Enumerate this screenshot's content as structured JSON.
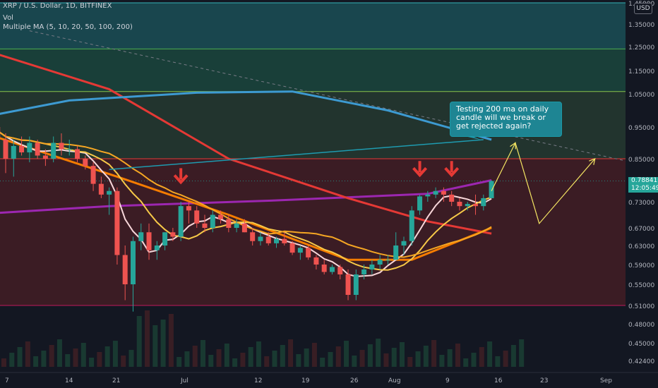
{
  "header": {
    "symbol_line": "XRP / U.S. Dollar, 1D, BITFINEX",
    "vol_label": "Vol",
    "ma_label": "Multiple MA (5, 10, 20, 50, 100, 200)",
    "currency": "USD"
  },
  "last_price": {
    "value": "0.78841",
    "countdown": "12:05:49"
  },
  "annotation": {
    "text": "Testing 200 ma on daily candle will we break or get rejected again?"
  },
  "colors": {
    "background": "#131722",
    "up_candle": "#26a69a",
    "down_candle": "#ef5350",
    "ma5": "#f8d7da",
    "ma10": "#f7c948",
    "ma20": "#f5a623",
    "ma50": "#f57c00",
    "ma100": "#e53935",
    "ma200": "#9c27b0",
    "extra_ma": "#3d9ad1",
    "teal_trendline": "#1e9bb0",
    "projection_line": "#f5e663",
    "signal_arrow": "#e53935"
  },
  "chart_data": {
    "type": "candlestick",
    "title": "XRP / U.S. Dollar, 1D, BITFINEX",
    "x_ticks": [
      "7",
      "14",
      "21",
      "Jul",
      "12",
      "19",
      "26",
      "Aug",
      "9",
      "16",
      "23",
      "Sep"
    ],
    "y_ticks": [
      1.45,
      1.35,
      1.25,
      1.15,
      1.05,
      0.95,
      0.85,
      0.73,
      0.67,
      0.63,
      0.59,
      0.55,
      0.51,
      0.48,
      0.45,
      0.424
    ],
    "y_ticks_display": [
      "1.45000",
      "1.35000",
      "1.25000",
      "1.15000",
      "1.05000",
      "0.95000",
      "0.85000",
      "0.73000",
      "0.67000",
      "0.63000",
      "0.59000",
      "0.55000",
      "0.51000",
      "0.48000",
      "0.45000",
      "0.42400"
    ],
    "y_scale": "log",
    "y_range": [
      0.4,
      1.46
    ],
    "x_domain": "2021-06-02 to 2021-09-05 (daily)",
    "ohlc": [
      [
        "2021-06-03",
        1.02,
        1.06,
        0.96,
        0.96
      ],
      [
        "2021-06-04",
        0.96,
        1.0,
        0.91,
        0.93
      ],
      [
        "2021-06-05",
        0.93,
        0.98,
        0.89,
        0.95
      ],
      [
        "2021-06-06",
        0.95,
        0.99,
        0.9,
        0.91
      ],
      [
        "2021-06-07",
        0.91,
        0.93,
        0.81,
        0.85
      ],
      [
        "2021-06-08",
        0.85,
        0.91,
        0.8,
        0.89
      ],
      [
        "2021-06-09",
        0.89,
        0.92,
        0.86,
        0.87
      ],
      [
        "2021-06-10",
        0.87,
        0.92,
        0.84,
        0.9
      ],
      [
        "2021-06-11",
        0.9,
        0.91,
        0.85,
        0.86
      ],
      [
        "2021-06-12",
        0.86,
        0.88,
        0.83,
        0.85
      ],
      [
        "2021-06-13",
        0.85,
        0.92,
        0.84,
        0.9
      ],
      [
        "2021-06-14",
        0.9,
        0.93,
        0.86,
        0.88
      ],
      [
        "2021-06-15",
        0.88,
        0.91,
        0.86,
        0.88
      ],
      [
        "2021-06-16",
        0.88,
        0.89,
        0.84,
        0.85
      ],
      [
        "2021-06-17",
        0.85,
        0.86,
        0.82,
        0.83
      ],
      [
        "2021-06-18",
        0.83,
        0.84,
        0.76,
        0.78
      ],
      [
        "2021-06-19",
        0.78,
        0.8,
        0.74,
        0.75
      ],
      [
        "2021-06-20",
        0.75,
        0.77,
        0.7,
        0.76
      ],
      [
        "2021-06-21",
        0.76,
        0.77,
        0.59,
        0.61
      ],
      [
        "2021-06-22",
        0.61,
        0.63,
        0.52,
        0.55
      ],
      [
        "2021-06-23",
        0.55,
        0.65,
        0.5,
        0.64
      ],
      [
        "2021-06-24",
        0.64,
        0.68,
        0.62,
        0.66
      ],
      [
        "2021-06-25",
        0.66,
        0.68,
        0.6,
        0.62
      ],
      [
        "2021-06-26",
        0.62,
        0.64,
        0.6,
        0.63
      ],
      [
        "2021-06-27",
        0.63,
        0.66,
        0.62,
        0.66
      ],
      [
        "2021-06-28",
        0.66,
        0.67,
        0.64,
        0.65
      ],
      [
        "2021-06-29",
        0.65,
        0.73,
        0.64,
        0.72
      ],
      [
        "2021-06-30",
        0.72,
        0.73,
        0.68,
        0.71
      ],
      [
        "2021-07-01",
        0.71,
        0.72,
        0.67,
        0.68
      ],
      [
        "2021-07-02",
        0.68,
        0.7,
        0.66,
        0.67
      ],
      [
        "2021-07-03",
        0.67,
        0.71,
        0.66,
        0.7
      ],
      [
        "2021-07-04",
        0.7,
        0.71,
        0.68,
        0.69
      ],
      [
        "2021-07-05",
        0.69,
        0.7,
        0.66,
        0.67
      ],
      [
        "2021-07-06",
        0.67,
        0.69,
        0.66,
        0.68
      ],
      [
        "2021-07-07",
        0.68,
        0.69,
        0.66,
        0.66
      ],
      [
        "2021-07-08",
        0.66,
        0.67,
        0.63,
        0.64
      ],
      [
        "2021-07-09",
        0.64,
        0.66,
        0.63,
        0.65
      ],
      [
        "2021-07-10",
        0.65,
        0.66,
        0.63,
        0.635
      ],
      [
        "2021-07-11",
        0.635,
        0.65,
        0.625,
        0.645
      ],
      [
        "2021-07-12",
        0.645,
        0.66,
        0.63,
        0.635
      ],
      [
        "2021-07-13",
        0.635,
        0.64,
        0.61,
        0.615
      ],
      [
        "2021-07-14",
        0.615,
        0.63,
        0.6,
        0.625
      ],
      [
        "2021-07-15",
        0.625,
        0.63,
        0.6,
        0.605
      ],
      [
        "2021-07-16",
        0.605,
        0.61,
        0.58,
        0.59
      ],
      [
        "2021-07-17",
        0.59,
        0.6,
        0.57,
        0.575
      ],
      [
        "2021-07-18",
        0.575,
        0.59,
        0.57,
        0.585
      ],
      [
        "2021-07-19",
        0.585,
        0.59,
        0.56,
        0.57
      ],
      [
        "2021-07-20",
        0.57,
        0.58,
        0.52,
        0.53
      ],
      [
        "2021-07-21",
        0.53,
        0.58,
        0.52,
        0.57
      ],
      [
        "2021-07-22",
        0.57,
        0.59,
        0.56,
        0.58
      ],
      [
        "2021-07-23",
        0.58,
        0.6,
        0.57,
        0.59
      ],
      [
        "2021-07-24",
        0.59,
        0.61,
        0.58,
        0.6
      ],
      [
        "2021-07-25",
        0.6,
        0.61,
        0.59,
        0.6
      ],
      [
        "2021-07-26",
        0.6,
        0.66,
        0.6,
        0.63
      ],
      [
        "2021-07-27",
        0.63,
        0.65,
        0.61,
        0.64
      ],
      [
        "2021-07-28",
        0.64,
        0.72,
        0.63,
        0.71
      ],
      [
        "2021-07-29",
        0.71,
        0.75,
        0.7,
        0.745
      ],
      [
        "2021-07-30",
        0.745,
        0.76,
        0.73,
        0.75
      ],
      [
        "2021-07-31",
        0.75,
        0.77,
        0.74,
        0.76
      ],
      [
        "2021-08-01",
        0.76,
        0.77,
        0.73,
        0.75
      ],
      [
        "2021-08-02",
        0.75,
        0.76,
        0.72,
        0.73
      ],
      [
        "2021-08-03",
        0.73,
        0.74,
        0.71,
        0.72
      ],
      [
        "2021-08-04",
        0.72,
        0.73,
        0.71,
        0.725
      ],
      [
        "2021-08-05",
        0.725,
        0.75,
        0.7,
        0.72
      ],
      [
        "2021-08-06",
        0.72,
        0.75,
        0.71,
        0.74
      ],
      [
        "2021-08-07",
        0.74,
        0.79,
        0.74,
        0.788
      ]
    ],
    "moving_averages": [
      {
        "name": "MA 200",
        "points": [
          [
            "2021-06-02",
            0.7
          ],
          [
            "2021-06-20",
            0.72
          ],
          [
            "2021-07-10",
            0.733
          ],
          [
            "2021-07-30",
            0.752
          ],
          [
            "2021-08-07",
            0.79
          ]
        ]
      },
      {
        "name": "MA 100",
        "points": [
          [
            "2021-06-02",
            1.26
          ],
          [
            "2021-06-20",
            1.07
          ],
          [
            "2021-07-05",
            0.85
          ],
          [
            "2021-07-20",
            0.74
          ],
          [
            "2021-07-30",
            0.685
          ],
          [
            "2021-08-07",
            0.657
          ]
        ]
      },
      {
        "name": "MA 50",
        "points": [
          [
            "2021-06-02",
            0.95
          ],
          [
            "2021-06-21",
            0.8
          ],
          [
            "2021-07-05",
            0.7
          ],
          [
            "2021-07-20",
            0.6
          ],
          [
            "2021-07-28",
            0.6
          ],
          [
            "2021-08-07",
            0.67
          ]
        ]
      },
      {
        "name": "MA (blue)",
        "points": [
          [
            "2021-06-02",
            0.97
          ],
          [
            "2021-06-15",
            1.03
          ],
          [
            "2021-07-01",
            1.055
          ],
          [
            "2021-07-13",
            1.06
          ],
          [
            "2021-07-25",
            1.0
          ],
          [
            "2021-08-07",
            0.91
          ]
        ]
      }
    ],
    "horizontal_levels": [
      1.45,
      1.24,
      1.06,
      0.85,
      0.51
    ],
    "volume": "present (bars near bottom of chart)",
    "drawings": [
      {
        "type": "arrow-down",
        "date": "2021-06-29",
        "price": 0.8
      },
      {
        "type": "arrow-down",
        "date": "2021-07-29",
        "price": 0.82
      },
      {
        "type": "arrow-down",
        "date": "2021-08-02",
        "price": 0.82
      },
      {
        "type": "projection",
        "points": [
          [
            "2021-08-07",
            0.76
          ],
          [
            "2021-08-10",
            0.9
          ],
          [
            "2021-08-13",
            0.68
          ],
          [
            "2021-08-20",
            0.85
          ]
        ]
      },
      {
        "type": "trendline",
        "points": [
          [
            "2021-06-20",
            0.82
          ],
          [
            "2021-08-06",
            0.91
          ]
        ]
      },
      {
        "type": "dashed-trendline",
        "points": [
          [
            "2021-06-10",
            1.32
          ],
          [
            "2021-09-04",
            0.79
          ]
        ]
      }
    ]
  }
}
